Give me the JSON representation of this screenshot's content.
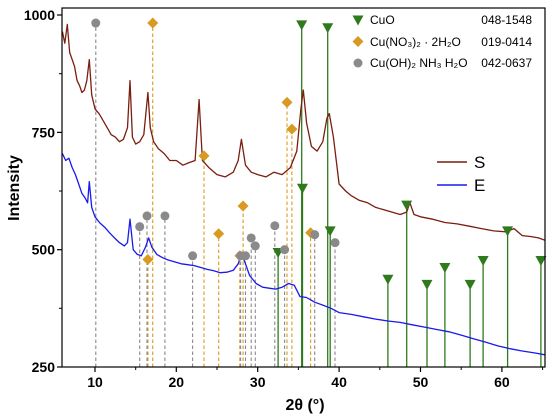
{
  "chart_data": {
    "type": "line",
    "xlabel": "2θ (°)",
    "ylabel": "Intensity",
    "xlim": [
      5.95,
      65.3
    ],
    "ylim": [
      250,
      1015
    ],
    "xticks": [
      10,
      20,
      30,
      40,
      50,
      60
    ],
    "yticks": [
      250,
      500,
      750,
      1000
    ],
    "grid": false,
    "legend_position": "top-right",
    "series": [
      {
        "name": "S",
        "color": "#7a1e10",
        "x": [
          6.0,
          6.3,
          6.6,
          6.9,
          7.2,
          7.5,
          7.8,
          8.1,
          8.4,
          8.7,
          9.0,
          9.3,
          9.6,
          10.0,
          10.5,
          11.0,
          11.5,
          12.0,
          12.5,
          13.0,
          13.5,
          14.0,
          14.3,
          14.6,
          15.0,
          15.5,
          16.0,
          16.5,
          16.8,
          17.2,
          17.8,
          18.5,
          19.2,
          20.0,
          20.8,
          21.5,
          22.3,
          22.8,
          23.2,
          24.0,
          25.0,
          26.0,
          27.0,
          27.6,
          28.0,
          28.5,
          29.2,
          30.0,
          31.0,
          32.0,
          33.0,
          34.0,
          34.8,
          35.3,
          35.6,
          36.0,
          36.6,
          37.3,
          38.0,
          38.5,
          38.8,
          39.3,
          40.0,
          40.8,
          41.5,
          42.5,
          43.5,
          44.5,
          45.5,
          46.5,
          47.5,
          48.3,
          48.7,
          49.2,
          50.0,
          51.5,
          53.0,
          54.5,
          56.0,
          57.5,
          59.0,
          60.5,
          61.5,
          62.5,
          63.5,
          64.5,
          65.3
        ],
        "y": [
          965,
          940,
          980,
          920,
          905,
          890,
          860,
          850,
          835,
          840,
          860,
          905,
          830,
          800,
          790,
          775,
          760,
          745,
          740,
          730,
          735,
          760,
          860,
          740,
          725,
          730,
          745,
          835,
          760,
          730,
          715,
          705,
          690,
          690,
          680,
          685,
          690,
          820,
          690,
          675,
          660,
          655,
          665,
          690,
          735,
          680,
          665,
          660,
          655,
          665,
          660,
          675,
          710,
          800,
          840,
          770,
          720,
          710,
          730,
          780,
          790,
          740,
          640,
          625,
          615,
          605,
          600,
          590,
          585,
          580,
          575,
          580,
          600,
          575,
          570,
          565,
          558,
          555,
          550,
          545,
          540,
          538,
          545,
          530,
          528,
          525,
          520
        ]
      },
      {
        "name": "E",
        "color": "#1a1aee",
        "x": [
          6.0,
          6.4,
          6.8,
          7.2,
          7.6,
          8.0,
          8.4,
          8.8,
          9.1,
          9.3,
          9.6,
          10.0,
          10.6,
          11.2,
          11.8,
          12.4,
          13.0,
          13.6,
          14.0,
          14.3,
          14.7,
          15.2,
          15.7,
          16.2,
          16.6,
          17.0,
          17.6,
          18.3,
          19.0,
          19.8,
          20.6,
          21.4,
          22.2,
          23.0,
          23.8,
          24.6,
          25.4,
          26.2,
          27.0,
          27.6,
          28.0,
          28.5,
          29.0,
          29.8,
          30.6,
          31.4,
          32.2,
          33.0,
          33.8,
          34.5,
          35.2,
          36.0,
          37.0,
          38.0,
          39.0,
          40.0,
          41.5,
          43.0,
          44.5,
          46.0,
          47.5,
          49.0,
          50.5,
          52.0,
          53.5,
          55.0,
          56.5,
          58.0,
          59.5,
          61.0,
          62.5,
          64.0,
          65.3
        ],
        "y": [
          705,
          690,
          695,
          675,
          660,
          640,
          620,
          610,
          600,
          645,
          590,
          570,
          557,
          548,
          536,
          525,
          515,
          508,
          515,
          565,
          500,
          490,
          487,
          505,
          525,
          505,
          490,
          483,
          478,
          474,
          470,
          468,
          466,
          462,
          458,
          455,
          451,
          452,
          456,
          470,
          492,
          470,
          445,
          428,
          420,
          418,
          416,
          420,
          428,
          424,
          400,
          398,
          388,
          382,
          375,
          366,
          362,
          357,
          352,
          348,
          345,
          340,
          335,
          330,
          325,
          318,
          310,
          303,
          295,
          289,
          284,
          280,
          276
        ]
      }
    ],
    "references": [
      {
        "name": "CuO",
        "card": "048-1548",
        "marker": "triangle-down",
        "color": "#2f7a1c",
        "line_style": "solid",
        "peaks": [
          [
            35.4,
            979
          ],
          [
            38.6,
            973
          ],
          [
            35.5,
            631
          ],
          [
            38.9,
            540
          ],
          [
            32.5,
            494
          ],
          [
            46.0,
            437
          ],
          [
            48.3,
            595
          ],
          [
            50.8,
            426
          ],
          [
            53.0,
            462
          ],
          [
            56.1,
            426
          ],
          [
            57.7,
            477
          ],
          [
            60.7,
            540
          ],
          [
            64.8,
            477
          ]
        ]
      },
      {
        "name": "Cu(NO₃)₂ · 2H₂O",
        "card": "019-0414",
        "marker": "diamond",
        "color": "#d99a22",
        "line_style": "dashed",
        "peaks": [
          [
            17.1,
            983
          ],
          [
            23.4,
            700
          ],
          [
            28.2,
            593
          ],
          [
            25.2,
            534
          ],
          [
            33.6,
            814
          ],
          [
            34.2,
            757
          ],
          [
            36.5,
            536
          ],
          [
            16.5,
            479
          ],
          [
            27.8,
            487
          ]
        ]
      },
      {
        "name": "Cu(OH)₂ NH₃ H₂O",
        "card": "042-0637",
        "marker": "circle",
        "color": "#8a8a8a",
        "line_style": "dashed",
        "peaks": [
          [
            10.1,
            983
          ],
          [
            15.5,
            549
          ],
          [
            16.4,
            572
          ],
          [
            18.6,
            572
          ],
          [
            22.0,
            487
          ],
          [
            27.9,
            487
          ],
          [
            28.5,
            487
          ],
          [
            29.2,
            525
          ],
          [
            29.7,
            508
          ],
          [
            32.1,
            551
          ],
          [
            33.3,
            500
          ],
          [
            37.0,
            532
          ],
          [
            39.5,
            515
          ]
        ]
      }
    ]
  }
}
